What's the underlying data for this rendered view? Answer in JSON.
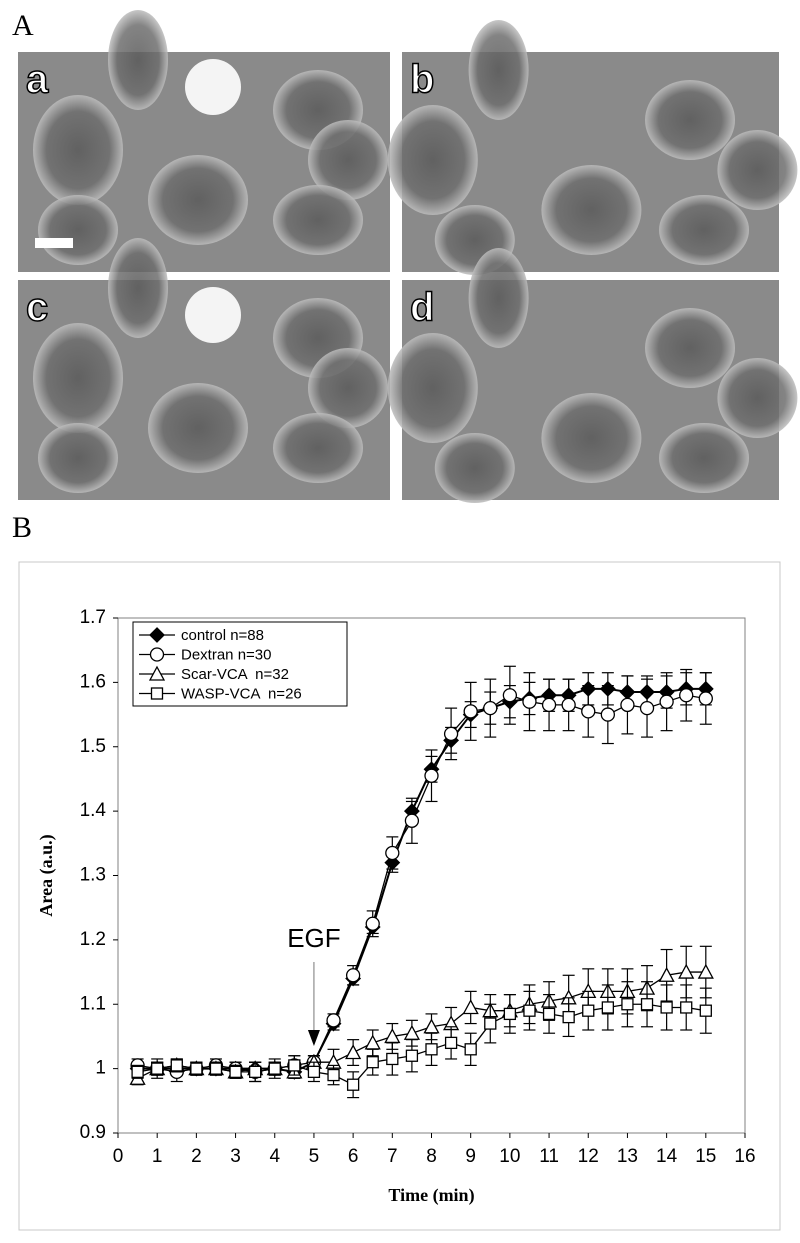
{
  "figure": {
    "panel_a_label": "A",
    "panel_b_label": "B",
    "panels": [
      "a",
      "b",
      "c",
      "d"
    ]
  },
  "chart_data": {
    "type": "line",
    "x_label": "Time (min)",
    "y_label": "Area (a.u.)",
    "annotation": {
      "text": "EGF",
      "x": 5
    },
    "legend": "upper left",
    "xlim": [
      0,
      16
    ],
    "xticks": [
      0,
      1,
      2,
      3,
      4,
      5,
      6,
      7,
      8,
      9,
      10,
      11,
      12,
      13,
      14,
      15,
      16
    ],
    "ylim": [
      0.9,
      1.7
    ],
    "yticks": [
      0.9,
      1,
      1.1,
      1.2,
      1.3,
      1.4,
      1.5,
      1.6,
      1.7
    ],
    "x": [
      0.5,
      1,
      1.5,
      2,
      2.5,
      3,
      3.5,
      4,
      4.5,
      5,
      5.5,
      6,
      6.5,
      7,
      7.5,
      8,
      8.5,
      9,
      9.5,
      10,
      10.5,
      11,
      11.5,
      12,
      12.5,
      13,
      13.5,
      14,
      14.5,
      15
    ],
    "series": [
      {
        "name": "control n=88",
        "color": "#000000",
        "marker": "diamond",
        "values": [
          1.0,
          1.0,
          1.0,
          1.0,
          1.0,
          1.0,
          1.0,
          1.0,
          0.995,
          1.01,
          1.07,
          1.14,
          1.22,
          1.32,
          1.4,
          1.465,
          1.51,
          1.55,
          1.56,
          1.57,
          1.575,
          1.58,
          1.58,
          1.59,
          1.59,
          1.585,
          1.585,
          1.585,
          1.59,
          1.59
        ],
        "errors": [
          0.01,
          0.01,
          0.01,
          0.01,
          0.01,
          0.01,
          0.01,
          0.01,
          0.01,
          0.01,
          0.01,
          0.01,
          0.01,
          0.015,
          0.015,
          0.02,
          0.02,
          0.02,
          0.025,
          0.025,
          0.025,
          0.025,
          0.025,
          0.025,
          0.025,
          0.025,
          0.025,
          0.025,
          0.025,
          0.025
        ]
      },
      {
        "name": "Dextran n=30",
        "color": "#000000",
        "marker": "circle",
        "values": [
          1.005,
          1.0,
          0.995,
          1.0,
          1.005,
          1.0,
          0.995,
          1.0,
          1.005,
          1.01,
          1.075,
          1.145,
          1.225,
          1.335,
          1.385,
          1.455,
          1.52,
          1.555,
          1.56,
          1.58,
          1.57,
          1.565,
          1.565,
          1.555,
          1.55,
          1.565,
          1.56,
          1.57,
          1.58,
          1.575
        ],
        "errors": [
          0.01,
          0.015,
          0.015,
          0.01,
          0.01,
          0.01,
          0.015,
          0.015,
          0.015,
          0.01,
          0.01,
          0.015,
          0.02,
          0.025,
          0.035,
          0.04,
          0.04,
          0.045,
          0.045,
          0.045,
          0.045,
          0.04,
          0.04,
          0.04,
          0.045,
          0.045,
          0.045,
          0.045,
          0.04,
          0.04
        ]
      },
      {
        "name": "Scar-VCA  n=32",
        "color": "#000000",
        "marker": "triangle",
        "values": [
          0.985,
          1.0,
          1.005,
          1.0,
          1.0,
          0.995,
          1.0,
          1.0,
          0.995,
          1.01,
          1.01,
          1.025,
          1.04,
          1.05,
          1.055,
          1.065,
          1.07,
          1.095,
          1.09,
          1.09,
          1.1,
          1.105,
          1.11,
          1.12,
          1.12,
          1.12,
          1.125,
          1.145,
          1.15,
          1.15
        ],
        "errors": [
          0.01,
          0.01,
          0.01,
          0.01,
          0.01,
          0.01,
          0.01,
          0.01,
          0.01,
          0.01,
          0.02,
          0.02,
          0.02,
          0.02,
          0.02,
          0.02,
          0.025,
          0.025,
          0.025,
          0.025,
          0.03,
          0.03,
          0.035,
          0.035,
          0.035,
          0.035,
          0.035,
          0.04,
          0.04,
          0.04
        ]
      },
      {
        "name": "WASP-VCA  n=26",
        "color": "#000000",
        "marker": "square",
        "values": [
          0.995,
          1.0,
          1.005,
          1.0,
          1.0,
          0.995,
          0.995,
          1.0,
          1.005,
          0.995,
          0.99,
          0.975,
          1.01,
          1.015,
          1.02,
          1.03,
          1.04,
          1.03,
          1.07,
          1.085,
          1.09,
          1.085,
          1.08,
          1.09,
          1.095,
          1.1,
          1.1,
          1.095,
          1.095,
          1.09
        ],
        "errors": [
          0.01,
          0.01,
          0.01,
          0.01,
          0.01,
          0.01,
          0.015,
          0.01,
          0.015,
          0.015,
          0.015,
          0.02,
          0.02,
          0.025,
          0.025,
          0.025,
          0.025,
          0.025,
          0.03,
          0.03,
          0.03,
          0.03,
          0.03,
          0.03,
          0.035,
          0.035,
          0.035,
          0.035,
          0.035,
          0.035
        ]
      }
    ]
  }
}
